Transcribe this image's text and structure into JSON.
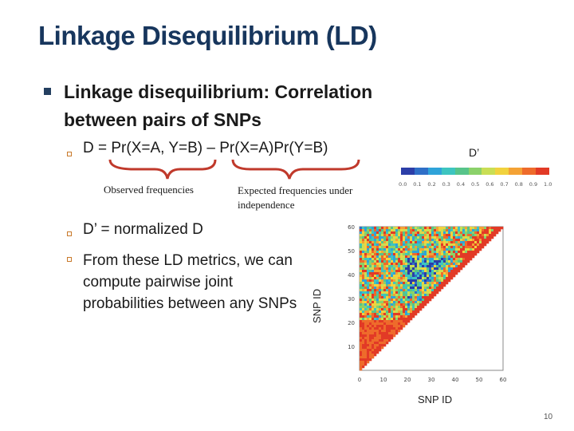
{
  "slide": {
    "title": "Linkage Disequilibrium (LD)",
    "bullet_main": "Linkage disequilibrium: Correlation between pairs of SNPs",
    "formula": "D = Pr(X=A, Y=B) – Pr(X=A)Pr(Y=B)",
    "brace_left_label": "Observed frequencies",
    "brace_right_label": "Expected frequencies under independence",
    "sub2": "D’ = normalized D",
    "sub3": "From these LD metrics, we can compute pairwise joint probabilities between any SNPs",
    "page_number": "10"
  },
  "figure": {
    "colorbar_title": "D’",
    "colorbar_ticks": [
      "0.0",
      "0.1",
      "0.2",
      "0.3",
      "0.4",
      "0.5",
      "0.6",
      "0.7",
      "0.8",
      "0.9",
      "1.0"
    ],
    "colorbar_colors": [
      "#2c3ea8",
      "#2f6fc7",
      "#2fa3d9",
      "#3dc5c0",
      "#57c48a",
      "#8bd16a",
      "#c9de55",
      "#f1d23e",
      "#f4a235",
      "#ee6b2b",
      "#e23a26"
    ],
    "x_label": "SNP ID",
    "y_label": "SNP ID",
    "x_ticks": [
      "0",
      "10",
      "20",
      "30",
      "40",
      "50",
      "60"
    ],
    "y_ticks": [
      "10",
      "20",
      "30",
      "40",
      "50",
      "60"
    ],
    "x_range": [
      0,
      60
    ],
    "y_range": [
      0,
      60
    ],
    "brace_color": "#c0392b"
  }
}
